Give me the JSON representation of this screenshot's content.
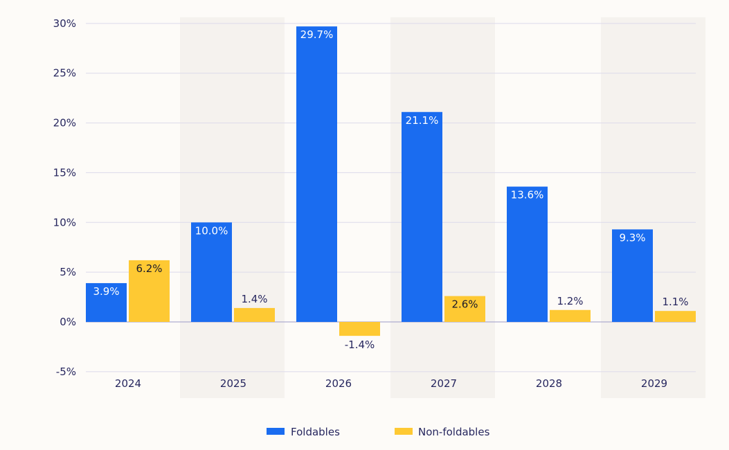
{
  "chart_data": {
    "type": "bar",
    "categories": [
      "2024",
      "2025",
      "2026",
      "2027",
      "2028",
      "2029"
    ],
    "series": [
      {
        "name": "Foldables",
        "values": [
          3.9,
          10.0,
          29.7,
          21.1,
          13.6,
          9.3
        ],
        "labels": [
          "3.9%",
          "10.0%",
          "29.7%",
          "21.1%",
          "13.6%",
          "9.3%"
        ],
        "color": "#1a6cf0"
      },
      {
        "name": "Non-foldables",
        "values": [
          6.2,
          1.4,
          -1.4,
          2.6,
          1.2,
          1.1
        ],
        "labels": [
          "6.2%",
          "1.4%",
          "-1.4%",
          "2.6%",
          "1.2%",
          "1.1%"
        ],
        "color": "#fec933"
      }
    ],
    "yticks": [
      "30%",
      "25%",
      "20%",
      "15%",
      "10%",
      "5%",
      "0%",
      "-5%"
    ],
    "ytick_values": [
      30,
      25,
      20,
      15,
      10,
      5,
      0,
      -5
    ],
    "ylim": [
      -5,
      30
    ],
    "grid": true,
    "legend": "bottom-center",
    "alternating_band_color": "#f5f2ee",
    "background": "#fdfbf8",
    "text_color": "#26265e"
  }
}
